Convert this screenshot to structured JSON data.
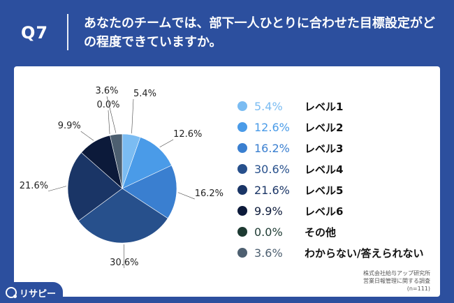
{
  "header": {
    "qnum": "Q7",
    "title": "あなたのチームでは、部下一人ひとりに合わせた目標設定がどの程度できていますか。"
  },
  "chart_data": {
    "type": "pie",
    "title": "",
    "labels": [
      "レベル1",
      "レベル2",
      "レベル3",
      "レベル4",
      "レベル5",
      "レベル6",
      "その他",
      "わからない/答えられない"
    ],
    "values": [
      5.4,
      12.6,
      16.2,
      30.6,
      21.6,
      9.9,
      0.0,
      3.6
    ],
    "value_labels": [
      "5.4%",
      "12.6%",
      "16.2%",
      "30.6%",
      "21.6%",
      "9.9%",
      "0.0%",
      "3.6%"
    ],
    "colors": [
      "#7bbcf2",
      "#4a9be8",
      "#3a7fd0",
      "#27508c",
      "#1a3566",
      "#0c1a3a",
      "#1d3a32",
      "#4d5f70"
    ],
    "legend_position": "right"
  },
  "footer": {
    "line1": "株式会社給与アップ研究所",
    "line2": "営業日報管理に関する調査",
    "line3": "(n=111)"
  },
  "logo": {
    "text": "リサピー"
  }
}
